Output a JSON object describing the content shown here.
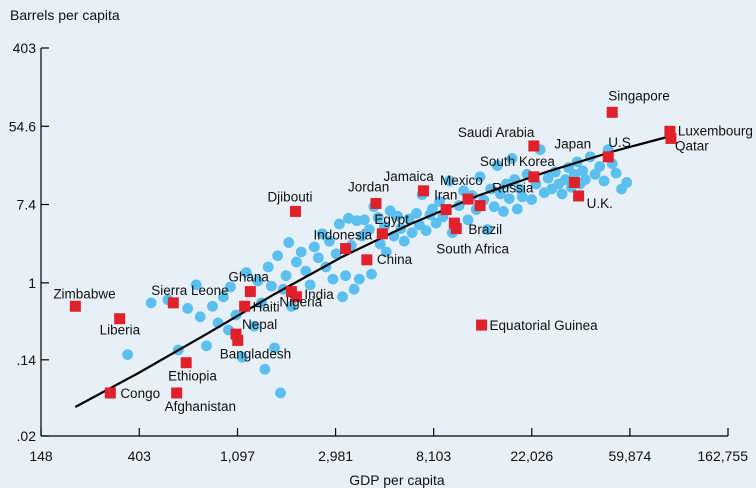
{
  "chart_data": {
    "type": "scatter",
    "ylabel": "Barrels per capita",
    "xlabel": "GDP per capita",
    "x_scale": "log",
    "y_scale": "log",
    "xlim": [
      148,
      162755
    ],
    "ylim": [
      0.02,
      403
    ],
    "x_ticks": [
      148,
      403,
      1097,
      2981,
      8103,
      22026,
      59874,
      162755
    ],
    "x_tick_labels": [
      "148",
      "403",
      "1,097",
      "2,981",
      "8,103",
      "22,026",
      "59,874",
      "162,755"
    ],
    "y_ticks": [
      0.02,
      0.14,
      1,
      7.4,
      54.6,
      403
    ],
    "y_tick_labels": [
      ".02",
      ".14",
      "1",
      "7.4",
      "54.6",
      "403"
    ],
    "grid": false,
    "colors": {
      "background": "#e8f0f7",
      "dots": "#5bc0f0",
      "highlight": "#e0202a",
      "fit": "#000000",
      "axis": "#000000"
    },
    "highlighted_countries": [
      {
        "label": "Zimbabwe",
        "x": 210,
        "y": 0.55
      },
      {
        "label": "Liberia",
        "x": 330,
        "y": 0.4
      },
      {
        "label": "Congo",
        "x": 300,
        "y": 0.06
      },
      {
        "label": "Sierra Leone",
        "x": 570,
        "y": 0.6
      },
      {
        "label": "Ethiopia",
        "x": 650,
        "y": 0.13
      },
      {
        "label": "Afghanistan",
        "x": 590,
        "y": 0.06
      },
      {
        "label": "Ghana",
        "x": 1250,
        "y": 0.8
      },
      {
        "label": "Haiti",
        "x": 1180,
        "y": 0.55
      },
      {
        "label": "Nepal",
        "x": 1080,
        "y": 0.27
      },
      {
        "label": "Bangladesh",
        "x": 1100,
        "y": 0.23
      },
      {
        "label": "India",
        "x": 2000,
        "y": 0.7
      },
      {
        "label": "Nigeria",
        "x": 1900,
        "y": 0.8
      },
      {
        "label": "Djibouti",
        "x": 1980,
        "y": 6.2
      },
      {
        "label": "Indonesia",
        "x": 3300,
        "y": 2.4
      },
      {
        "label": "China",
        "x": 4100,
        "y": 1.8
      },
      {
        "label": "Jordan",
        "x": 4500,
        "y": 7.6
      },
      {
        "label": "Egypt",
        "x": 4800,
        "y": 3.5
      },
      {
        "label": "Jamaica",
        "x": 7300,
        "y": 10.5
      },
      {
        "label": "Iran",
        "x": 9200,
        "y": 6.5
      },
      {
        "label": "Mexico",
        "x": 11500,
        "y": 8.5
      },
      {
        "label": "Russia",
        "x": 13000,
        "y": 7.2
      },
      {
        "label": "Brazil",
        "x": 10000,
        "y": 4.6
      },
      {
        "label": "South Africa",
        "x": 10200,
        "y": 4.0
      },
      {
        "label": "Equatorial Guinea",
        "x": 13200,
        "y": 0.34
      },
      {
        "label": "Saudi Arabia",
        "x": 22500,
        "y": 33
      },
      {
        "label": "South Korea",
        "x": 22500,
        "y": 15
      },
      {
        "label": "Japan",
        "x": 34000,
        "y": 13
      },
      {
        "label": "U.K.",
        "x": 35500,
        "y": 9.2
      },
      {
        "label": "Singapore",
        "x": 50000,
        "y": 78
      },
      {
        "label": "U.S.",
        "x": 48000,
        "y": 25
      },
      {
        "label": "Luxembourg",
        "x": 90000,
        "y": 48
      },
      {
        "label": "Qatar",
        "x": 91000,
        "y": 40
      }
    ],
    "other_countries": [
      {
        "x": 358,
        "y": 0.16
      },
      {
        "x": 455,
        "y": 0.6
      },
      {
        "x": 540,
        "y": 0.65
      },
      {
        "x": 600,
        "y": 0.18
      },
      {
        "x": 660,
        "y": 0.52
      },
      {
        "x": 720,
        "y": 0.95
      },
      {
        "x": 750,
        "y": 0.42
      },
      {
        "x": 800,
        "y": 0.2
      },
      {
        "x": 850,
        "y": 0.55
      },
      {
        "x": 900,
        "y": 0.36
      },
      {
        "x": 950,
        "y": 0.7
      },
      {
        "x": 1000,
        "y": 0.3
      },
      {
        "x": 1020,
        "y": 0.9
      },
      {
        "x": 1080,
        "y": 0.44
      },
      {
        "x": 1150,
        "y": 0.15
      },
      {
        "x": 1200,
        "y": 1.3
      },
      {
        "x": 1300,
        "y": 0.33
      },
      {
        "x": 1350,
        "y": 1.05
      },
      {
        "x": 1400,
        "y": 0.6
      },
      {
        "x": 1450,
        "y": 0.11
      },
      {
        "x": 1500,
        "y": 1.5
      },
      {
        "x": 1550,
        "y": 0.92
      },
      {
        "x": 1600,
        "y": 0.19
      },
      {
        "x": 1650,
        "y": 2.0
      },
      {
        "x": 1700,
        "y": 0.06
      },
      {
        "x": 1750,
        "y": 0.85
      },
      {
        "x": 1800,
        "y": 1.2
      },
      {
        "x": 1850,
        "y": 2.8
      },
      {
        "x": 1900,
        "y": 0.55
      },
      {
        "x": 2000,
        "y": 1.7
      },
      {
        "x": 2100,
        "y": 2.2
      },
      {
        "x": 2200,
        "y": 1.35
      },
      {
        "x": 2300,
        "y": 0.95
      },
      {
        "x": 2400,
        "y": 2.5
      },
      {
        "x": 2500,
        "y": 1.9
      },
      {
        "x": 2600,
        "y": 3.5
      },
      {
        "x": 2700,
        "y": 1.5
      },
      {
        "x": 2800,
        "y": 2.9
      },
      {
        "x": 2900,
        "y": 1.1
      },
      {
        "x": 3000,
        "y": 2.1
      },
      {
        "x": 3100,
        "y": 4.5
      },
      {
        "x": 3200,
        "y": 0.7
      },
      {
        "x": 3300,
        "y": 1.2
      },
      {
        "x": 3400,
        "y": 5.2
      },
      {
        "x": 3500,
        "y": 2.6
      },
      {
        "x": 3600,
        "y": 0.85
      },
      {
        "x": 3700,
        "y": 4.9
      },
      {
        "x": 3800,
        "y": 1.1
      },
      {
        "x": 3900,
        "y": 3.3
      },
      {
        "x": 4000,
        "y": 5.0
      },
      {
        "x": 4200,
        "y": 3.9
      },
      {
        "x": 4300,
        "y": 1.25
      },
      {
        "x": 4400,
        "y": 7.0
      },
      {
        "x": 4600,
        "y": 5.3
      },
      {
        "x": 4700,
        "y": 2.7
      },
      {
        "x": 4900,
        "y": 4.2
      },
      {
        "x": 5000,
        "y": 2.2
      },
      {
        "x": 5200,
        "y": 6.3
      },
      {
        "x": 5400,
        "y": 3.3
      },
      {
        "x": 5600,
        "y": 5.5
      },
      {
        "x": 5800,
        "y": 4.0
      },
      {
        "x": 6000,
        "y": 2.9
      },
      {
        "x": 6300,
        "y": 5.1
      },
      {
        "x": 6500,
        "y": 3.6
      },
      {
        "x": 6800,
        "y": 5.9
      },
      {
        "x": 7000,
        "y": 4.4
      },
      {
        "x": 7200,
        "y": 9.5
      },
      {
        "x": 7500,
        "y": 3.8
      },
      {
        "x": 7800,
        "y": 5.7
      },
      {
        "x": 8000,
        "y": 6.6
      },
      {
        "x": 8300,
        "y": 4.6
      },
      {
        "x": 8600,
        "y": 8.0
      },
      {
        "x": 8900,
        "y": 5.4
      },
      {
        "x": 9500,
        "y": 13.5
      },
      {
        "x": 9800,
        "y": 3.6
      },
      {
        "x": 10500,
        "y": 7.2
      },
      {
        "x": 11000,
        "y": 10.5
      },
      {
        "x": 11500,
        "y": 5.0
      },
      {
        "x": 12000,
        "y": 9.3
      },
      {
        "x": 12500,
        "y": 6.5
      },
      {
        "x": 13000,
        "y": 15
      },
      {
        "x": 13500,
        "y": 8.3
      },
      {
        "x": 14000,
        "y": 3.9
      },
      {
        "x": 14500,
        "y": 11
      },
      {
        "x": 15000,
        "y": 7.0
      },
      {
        "x": 15500,
        "y": 20
      },
      {
        "x": 16000,
        "y": 9.7
      },
      {
        "x": 16500,
        "y": 6.2
      },
      {
        "x": 17000,
        "y": 12.5
      },
      {
        "x": 17500,
        "y": 8.6
      },
      {
        "x": 18000,
        "y": 24
      },
      {
        "x": 18500,
        "y": 14
      },
      {
        "x": 19000,
        "y": 6.6
      },
      {
        "x": 19500,
        "y": 11
      },
      {
        "x": 20000,
        "y": 9.0
      },
      {
        "x": 21000,
        "y": 16
      },
      {
        "x": 22000,
        "y": 8.4
      },
      {
        "x": 23000,
        "y": 12.5
      },
      {
        "x": 24000,
        "y": 30
      },
      {
        "x": 25000,
        "y": 10
      },
      {
        "x": 26000,
        "y": 14.5
      },
      {
        "x": 27000,
        "y": 11
      },
      {
        "x": 28000,
        "y": 17
      },
      {
        "x": 29000,
        "y": 12.5
      },
      {
        "x": 30000,
        "y": 9.7
      },
      {
        "x": 31000,
        "y": 14
      },
      {
        "x": 32000,
        "y": 19
      },
      {
        "x": 33000,
        "y": 11.5
      },
      {
        "x": 34000,
        "y": 16
      },
      {
        "x": 35000,
        "y": 22
      },
      {
        "x": 36000,
        "y": 12.5
      },
      {
        "x": 37000,
        "y": 17.5
      },
      {
        "x": 38000,
        "y": 14
      },
      {
        "x": 40000,
        "y": 25
      },
      {
        "x": 42000,
        "y": 16
      },
      {
        "x": 44000,
        "y": 19.5
      },
      {
        "x": 46000,
        "y": 13.5
      },
      {
        "x": 48000,
        "y": 30
      },
      {
        "x": 50000,
        "y": 21
      },
      {
        "x": 52000,
        "y": 16.5
      },
      {
        "x": 55000,
        "y": 11
      },
      {
        "x": 58000,
        "y": 13
      }
    ],
    "fit_line": {
      "x": [
        210,
        400,
        800,
        1600,
        3200,
        6400,
        12800,
        25600,
        51200,
        86000
      ],
      "y": [
        0.042,
        0.1,
        0.27,
        0.75,
        1.95,
        4.5,
        9.3,
        17,
        29,
        41
      ]
    }
  }
}
